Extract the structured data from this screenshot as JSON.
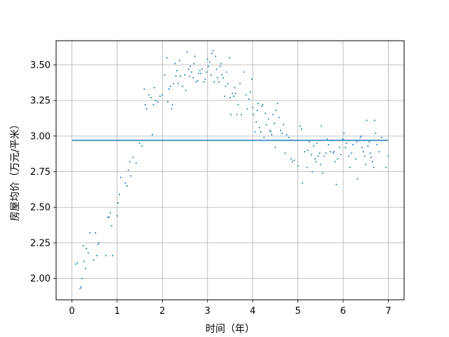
{
  "chart_data": {
    "type": "scatter",
    "xlabel": "时间（年）",
    "ylabel": "房屋均价（万元/平米）",
    "xlim": [
      -0.35,
      7.35
    ],
    "ylim": [
      1.85,
      3.67
    ],
    "x_ticks": [
      0,
      1,
      2,
      3,
      4,
      5,
      6,
      7
    ],
    "x_tick_labels": [
      "0",
      "1",
      "2",
      "3",
      "4",
      "5",
      "6",
      "7"
    ],
    "y_ticks": [
      2.0,
      2.25,
      2.5,
      2.75,
      3.0,
      3.25,
      3.5
    ],
    "y_tick_labels": [
      "2.00",
      "2.25",
      "2.50",
      "2.75",
      "3.00",
      "3.25",
      "3.50"
    ],
    "grid": true,
    "legend": "none",
    "colors": {
      "series": "#1f77b4",
      "grid": "#b0b0b0",
      "axes": "#000000"
    },
    "series": [
      {
        "type": "line",
        "points": [
          [
            0,
            2.97
          ],
          [
            7,
            2.97
          ]
        ]
      },
      {
        "type": "scatter",
        "points": [
          [
            0.08,
            2.1
          ],
          [
            0.12,
            2.11
          ],
          [
            0.18,
            1.93
          ],
          [
            0.2,
            1.94
          ],
          [
            0.22,
            2.0
          ],
          [
            0.25,
            2.23
          ],
          [
            0.27,
            2.12
          ],
          [
            0.3,
            2.07
          ],
          [
            0.32,
            2.21
          ],
          [
            0.36,
            2.18
          ],
          [
            0.4,
            2.32
          ],
          [
            0.48,
            2.13
          ],
          [
            0.52,
            2.32
          ],
          [
            0.55,
            2.16
          ],
          [
            0.58,
            2.24
          ],
          [
            0.6,
            2.25
          ],
          [
            0.75,
            2.16
          ],
          [
            0.8,
            2.43
          ],
          [
            0.82,
            2.43
          ],
          [
            0.85,
            2.46
          ],
          [
            0.88,
            2.37
          ],
          [
            0.9,
            2.16
          ],
          [
            1.0,
            2.44
          ],
          [
            1.02,
            2.53
          ],
          [
            1.05,
            2.59
          ],
          [
            1.08,
            2.71
          ],
          [
            1.18,
            2.67
          ],
          [
            1.22,
            2.65
          ],
          [
            1.25,
            2.76
          ],
          [
            1.28,
            2.82
          ],
          [
            1.3,
            2.72
          ],
          [
            1.35,
            2.85
          ],
          [
            1.42,
            2.81
          ],
          [
            1.5,
            2.95
          ],
          [
            1.55,
            2.93
          ],
          [
            1.6,
            3.33
          ],
          [
            1.62,
            3.22
          ],
          [
            1.65,
            3.19
          ],
          [
            1.7,
            3.29
          ],
          [
            1.75,
            3.27
          ],
          [
            1.78,
            3.01
          ],
          [
            1.8,
            3.22
          ],
          [
            1.82,
            3.34
          ],
          [
            1.85,
            3.25
          ],
          [
            1.9,
            3.24
          ],
          [
            1.95,
            3.28
          ],
          [
            2.0,
            3.29
          ],
          [
            2.05,
            3.43
          ],
          [
            2.1,
            3.55
          ],
          [
            2.12,
            3.24
          ],
          [
            2.15,
            3.33
          ],
          [
            2.18,
            3.35
          ],
          [
            2.2,
            3.19
          ],
          [
            2.22,
            3.22
          ],
          [
            2.25,
            3.37
          ],
          [
            2.28,
            3.51
          ],
          [
            2.3,
            3.42
          ],
          [
            2.32,
            3.46
          ],
          [
            2.35,
            3.37
          ],
          [
            2.38,
            3.53
          ],
          [
            2.4,
            3.42
          ],
          [
            2.45,
            3.35
          ],
          [
            2.5,
            3.43
          ],
          [
            2.52,
            3.32
          ],
          [
            2.55,
            3.59
          ],
          [
            2.58,
            3.47
          ],
          [
            2.6,
            3.42
          ],
          [
            2.62,
            3.49
          ],
          [
            2.65,
            3.45
          ],
          [
            2.68,
            3.41
          ],
          [
            2.7,
            3.51
          ],
          [
            2.72,
            3.56
          ],
          [
            2.75,
            3.38
          ],
          [
            2.78,
            3.39
          ],
          [
            2.8,
            3.44
          ],
          [
            2.83,
            3.46
          ],
          [
            2.85,
            3.44
          ],
          [
            2.88,
            3.47
          ],
          [
            2.92,
            3.38
          ],
          [
            2.95,
            3.4
          ],
          [
            2.98,
            3.45
          ],
          [
            3.0,
            3.54
          ],
          [
            3.02,
            3.49
          ],
          [
            3.05,
            3.52
          ],
          [
            3.08,
            3.43
          ],
          [
            3.1,
            3.58
          ],
          [
            3.12,
            3.6
          ],
          [
            3.15,
            3.38
          ],
          [
            3.18,
            3.56
          ],
          [
            3.2,
            3.47
          ],
          [
            3.22,
            3.41
          ],
          [
            3.25,
            3.38
          ],
          [
            3.28,
            3.49
          ],
          [
            3.3,
            3.51
          ],
          [
            3.32,
            3.43
          ],
          [
            3.35,
            3.41
          ],
          [
            3.38,
            3.28
          ],
          [
            3.4,
            3.35
          ],
          [
            3.42,
            3.45
          ],
          [
            3.45,
            3.37
          ],
          [
            3.48,
            3.55
          ],
          [
            3.5,
            3.27
          ],
          [
            3.52,
            3.15
          ],
          [
            3.55,
            3.3
          ],
          [
            3.58,
            3.28
          ],
          [
            3.6,
            3.34
          ],
          [
            3.62,
            3.3
          ],
          [
            3.65,
            3.15
          ],
          [
            3.68,
            3.22
          ],
          [
            3.72,
            3.37
          ],
          [
            3.75,
            3.15
          ],
          [
            3.8,
            3.45
          ],
          [
            3.85,
            3.29
          ],
          [
            3.88,
            3.19
          ],
          [
            3.92,
            3.26
          ],
          [
            3.95,
            3.31
          ],
          [
            3.98,
            3.4
          ],
          [
            4.0,
            3.2
          ],
          [
            4.02,
            3.15
          ],
          [
            4.05,
            3.03
          ],
          [
            4.08,
            3.1
          ],
          [
            4.1,
            3.18
          ],
          [
            4.12,
            3.23
          ],
          [
            4.15,
            3.06
          ],
          [
            4.18,
            3.03
          ],
          [
            4.2,
            3.21
          ],
          [
            4.22,
            3.22
          ],
          [
            4.25,
            2.99
          ],
          [
            4.28,
            3.16
          ],
          [
            4.3,
            3.08
          ],
          [
            4.35,
            3.12
          ],
          [
            4.38,
            3.04
          ],
          [
            4.4,
            3.03
          ],
          [
            4.42,
            3.01
          ],
          [
            4.45,
            3.15
          ],
          [
            4.48,
            3.09
          ],
          [
            4.5,
            2.92
          ],
          [
            4.52,
            3.18
          ],
          [
            4.55,
            3.23
          ],
          [
            4.58,
            3.13
          ],
          [
            4.62,
            3.04
          ],
          [
            4.65,
            3.02
          ],
          [
            4.68,
            3.08
          ],
          [
            4.72,
            2.88
          ],
          [
            4.75,
            3.01
          ],
          [
            4.8,
            2.99
          ],
          [
            4.85,
            2.84
          ],
          [
            4.88,
            2.82
          ],
          [
            4.92,
            2.83
          ],
          [
            5.0,
            2.79
          ],
          [
            5.05,
            3.07
          ],
          [
            5.08,
            3.05
          ],
          [
            5.1,
            2.67
          ],
          [
            5.15,
            2.89
          ],
          [
            5.2,
            2.78
          ],
          [
            5.22,
            2.9
          ],
          [
            5.25,
            2.96
          ],
          [
            5.3,
            2.87
          ],
          [
            5.32,
            2.75
          ],
          [
            5.35,
            2.93
          ],
          [
            5.38,
            2.84
          ],
          [
            5.4,
            2.82
          ],
          [
            5.42,
            2.95
          ],
          [
            5.45,
            2.86
          ],
          [
            5.48,
            2.88
          ],
          [
            5.5,
            2.8
          ],
          [
            5.52,
            3.07
          ],
          [
            5.55,
            2.74
          ],
          [
            5.58,
            2.86
          ],
          [
            5.62,
            2.88
          ],
          [
            5.65,
            2.98
          ],
          [
            5.68,
            2.94
          ],
          [
            5.72,
            2.89
          ],
          [
            5.75,
            2.97
          ],
          [
            5.78,
            2.88
          ],
          [
            5.8,
            2.89
          ],
          [
            5.82,
            2.82
          ],
          [
            5.85,
            2.66
          ],
          [
            5.88,
            2.84
          ],
          [
            5.92,
            2.92
          ],
          [
            5.95,
            2.87
          ],
          [
            5.98,
            2.97
          ],
          [
            6.0,
            2.98
          ],
          [
            6.02,
            3.02
          ],
          [
            6.05,
            2.92
          ],
          [
            6.08,
            2.95
          ],
          [
            6.12,
            2.86
          ],
          [
            6.15,
            2.78
          ],
          [
            6.18,
            2.88
          ],
          [
            6.22,
            2.94
          ],
          [
            6.28,
            2.84
          ],
          [
            6.3,
            2.96
          ],
          [
            6.32,
            2.7
          ],
          [
            6.35,
            2.97
          ],
          [
            6.38,
            2.99
          ],
          [
            6.4,
            3.0
          ],
          [
            6.42,
            2.92
          ],
          [
            6.45,
            2.89
          ],
          [
            6.48,
            2.86
          ],
          [
            6.5,
            2.8
          ],
          [
            6.52,
            3.11
          ],
          [
            6.55,
            2.93
          ],
          [
            6.58,
            2.96
          ],
          [
            6.6,
            2.88
          ],
          [
            6.62,
            2.85
          ],
          [
            6.65,
            2.82
          ],
          [
            6.68,
            2.78
          ],
          [
            6.7,
            3.11
          ],
          [
            6.72,
            3.02
          ],
          [
            6.75,
            2.94
          ],
          [
            6.8,
            2.89
          ],
          [
            6.85,
            2.99
          ],
          [
            6.95,
            2.78
          ],
          [
            7.0,
            2.86
          ]
        ]
      }
    ]
  }
}
